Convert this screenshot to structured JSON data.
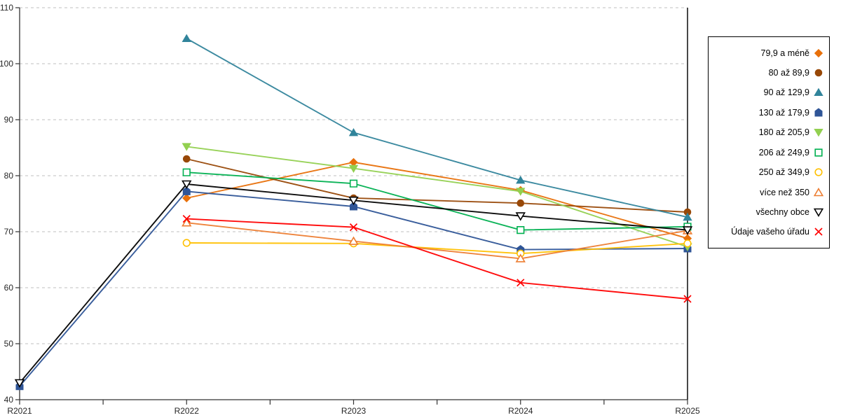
{
  "chart_data": {
    "type": "line",
    "categories": [
      "R2021",
      "R2022",
      "R2023",
      "R2024",
      "R2025"
    ],
    "yticks": [
      40,
      50,
      60,
      70,
      80,
      90,
      100,
      110
    ],
    "ylim": [
      40,
      110
    ],
    "grid": "horizontal-dashed",
    "legend_position": "right",
    "title": "",
    "xlabel": "",
    "ylabel": "",
    "series": [
      {
        "name": "79,9 a méně",
        "color": "#E8700A",
        "marker": "diamond",
        "filled": true,
        "values": [
          null,
          76.0,
          82.4,
          77.4,
          68.8
        ]
      },
      {
        "name": "80 až 89,9",
        "color": "#984807",
        "marker": "circle",
        "filled": true,
        "values": [
          null,
          83.0,
          76.0,
          75.1,
          73.5
        ]
      },
      {
        "name": "90 až 129,9",
        "color": "#31849B",
        "marker": "triangle-up",
        "filled": true,
        "values": [
          null,
          104.5,
          87.7,
          79.2,
          72.6
        ]
      },
      {
        "name": "130 až 179,9",
        "color": "#2F5597",
        "marker": "pentagon",
        "filled": true,
        "values": [
          42.4,
          77.2,
          74.5,
          66.8,
          67.0
        ]
      },
      {
        "name": "180 až 205,9",
        "color": "#92D050",
        "marker": "triangle-down",
        "filled": true,
        "values": [
          null,
          85.2,
          81.3,
          77.2,
          67.3
        ]
      },
      {
        "name": "206 až 249,9",
        "color": "#00B050",
        "marker": "square",
        "filled": false,
        "values": [
          null,
          80.6,
          78.6,
          70.3,
          70.9
        ]
      },
      {
        "name": "250 až 349,9",
        "color": "#FFC000",
        "marker": "circle",
        "filled": false,
        "values": [
          null,
          68.0,
          67.9,
          66.1,
          67.9
        ]
      },
      {
        "name": "více než 350",
        "color": "#ED7D31",
        "marker": "triangle-up",
        "filled": false,
        "values": [
          null,
          71.6,
          68.3,
          65.2,
          70.2
        ]
      },
      {
        "name": "všechny obce",
        "color": "#000000",
        "marker": "triangle-down",
        "filled": false,
        "values": [
          43.0,
          78.5,
          75.6,
          72.8,
          70.3
        ]
      },
      {
        "name": "Údaje vašeho úřadu",
        "color": "#FF0000",
        "marker": "x",
        "filled": false,
        "values": [
          null,
          72.3,
          70.8,
          60.9,
          58.0
        ]
      }
    ],
    "style": {
      "grid_color": "#BFBFBF",
      "axis_color": "#333333"
    }
  }
}
